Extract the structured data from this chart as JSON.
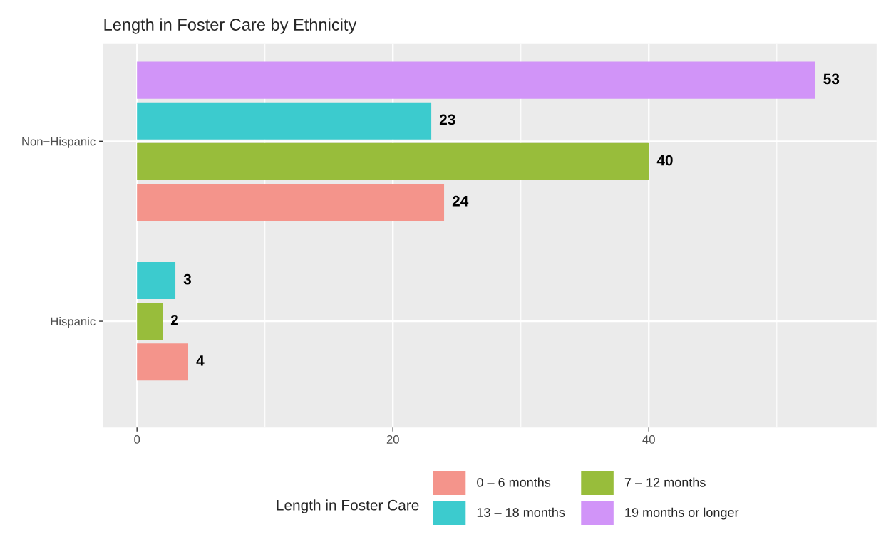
{
  "chart_data": {
    "type": "bar",
    "orientation": "horizontal",
    "title": "Length in Foster Care by Ethnicity",
    "legend_title": "Length in Foster Care",
    "categories": [
      "Non−Hispanic",
      "Hispanic"
    ],
    "series": [
      {
        "name": "0 – 6 months",
        "color": "#f4948b",
        "values": [
          24,
          4
        ]
      },
      {
        "name": "7 – 12 months",
        "color": "#98bd3b",
        "values": [
          40,
          2
        ]
      },
      {
        "name": "13 – 18 months",
        "color": "#3ccbce",
        "values": [
          23,
          3
        ]
      },
      {
        "name": "19 months or longer",
        "color": "#d194f8",
        "values": [
          53,
          null
        ]
      }
    ],
    "xlim": [
      -2.65,
      57.8
    ],
    "xticks": [
      0,
      {
        "value": 10,
        "label": null
      },
      20,
      {
        "value": 30,
        "label": null
      },
      40,
      {
        "value": 50,
        "label": null
      }
    ],
    "grid": true,
    "legend": "bottom",
    "data_labels": true
  }
}
